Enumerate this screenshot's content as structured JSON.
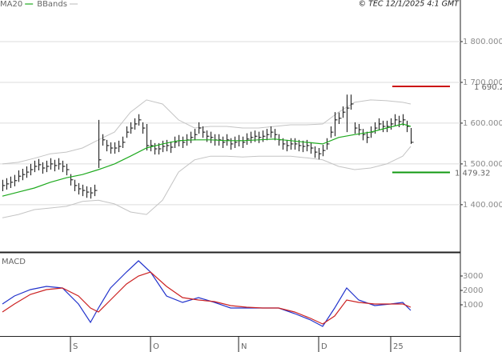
{
  "header": "© TEC 12/1/2025 4:1 GMT",
  "chart_data": [
    {
      "type": "ohlc",
      "x": [
        0,
        1,
        2,
        3,
        4,
        5,
        6,
        7,
        8,
        9,
        10,
        11,
        12,
        13,
        14,
        15,
        16,
        17,
        18,
        19,
        20,
        21,
        22,
        23,
        24,
        25,
        26,
        27,
        28,
        29,
        30,
        31,
        32,
        33,
        34,
        35,
        36,
        37,
        38,
        39,
        40,
        41,
        42,
        43,
        44,
        45,
        46,
        47,
        48,
        49,
        50,
        51,
        52,
        53,
        54,
        55,
        56,
        57,
        58,
        59,
        60,
        61,
        62,
        63,
        64,
        65,
        66,
        67,
        68,
        69,
        70,
        71,
        72,
        73,
        74,
        75,
        76,
        77,
        78,
        79,
        80,
        81,
        82,
        83,
        84,
        85,
        86,
        87,
        88,
        89,
        90,
        91,
        92,
        93,
        94,
        95,
        96,
        97,
        98,
        99,
        100,
        101,
        102
      ],
      "high": [
        1461,
        1465,
        1469,
        1473,
        1484,
        1488,
        1494,
        1500,
        1508,
        1512,
        1504,
        1508,
        1514,
        1510,
        1514,
        1508,
        1500,
        1475,
        1461,
        1453,
        1449,
        1445,
        1443,
        1449,
        1608,
        1573,
        1559,
        1553,
        1553,
        1557,
        1567,
        1592,
        1602,
        1612,
        1622,
        1602,
        1598,
        1559,
        1551,
        1551,
        1557,
        1559,
        1555,
        1567,
        1571,
        1567,
        1573,
        1579,
        1586,
        1602,
        1592,
        1582,
        1579,
        1573,
        1573,
        1567,
        1573,
        1563,
        1567,
        1571,
        1567,
        1575,
        1579,
        1582,
        1579,
        1582,
        1586,
        1592,
        1586,
        1573,
        1563,
        1559,
        1563,
        1563,
        1559,
        1557,
        1559,
        1553,
        1543,
        1539,
        1547,
        1563,
        1592,
        1627,
        1626,
        1641,
        1670,
        1670,
        1602,
        1598,
        1586,
        1579,
        1592,
        1602,
        1612,
        1606,
        1606,
        1612,
        1622,
        1618,
        1622,
        1606,
        1588
      ],
      "low": [
        1433,
        1437,
        1441,
        1445,
        1456,
        1460,
        1466,
        1472,
        1480,
        1484,
        1476,
        1480,
        1486,
        1482,
        1486,
        1480,
        1472,
        1447,
        1433,
        1425,
        1421,
        1417,
        1415,
        1421,
        1490,
        1545,
        1531,
        1525,
        1525,
        1529,
        1539,
        1564,
        1574,
        1584,
        1594,
        1574,
        1533,
        1531,
        1523,
        1523,
        1529,
        1531,
        1527,
        1539,
        1543,
        1539,
        1545,
        1551,
        1558,
        1574,
        1564,
        1554,
        1551,
        1545,
        1545,
        1539,
        1545,
        1535,
        1539,
        1543,
        1539,
        1547,
        1551,
        1554,
        1551,
        1554,
        1558,
        1564,
        1558,
        1545,
        1535,
        1531,
        1535,
        1535,
        1531,
        1529,
        1531,
        1525,
        1515,
        1511,
        1519,
        1535,
        1564,
        1568,
        1598,
        1613,
        1578,
        1633,
        1574,
        1570,
        1558,
        1551,
        1564,
        1574,
        1584,
        1578,
        1578,
        1584,
        1594,
        1590,
        1594,
        1578,
        1549
      ],
      "close": [
        1447,
        1451,
        1455,
        1459,
        1470,
        1474,
        1480,
        1486,
        1494,
        1498,
        1490,
        1494,
        1500,
        1496,
        1500,
        1494,
        1486,
        1461,
        1447,
        1439,
        1435,
        1431,
        1429,
        1435,
        1510,
        1559,
        1545,
        1539,
        1539,
        1543,
        1553,
        1578,
        1588,
        1598,
        1608,
        1588,
        1545,
        1545,
        1537,
        1537,
        1543,
        1545,
        1541,
        1553,
        1557,
        1553,
        1559,
        1565,
        1572,
        1588,
        1578,
        1568,
        1565,
        1559,
        1559,
        1553,
        1559,
        1549,
        1553,
        1557,
        1553,
        1561,
        1565,
        1568,
        1565,
        1568,
        1572,
        1578,
        1572,
        1559,
        1549,
        1545,
        1549,
        1549,
        1545,
        1543,
        1545,
        1539,
        1529,
        1525,
        1533,
        1549,
        1578,
        1608,
        1612,
        1627,
        1637,
        1647,
        1588,
        1584,
        1572,
        1565,
        1578,
        1588,
        1598,
        1592,
        1592,
        1598,
        1608,
        1604,
        1608,
        1592,
        1553
      ],
      "bar_color": "#111111",
      "xlim": [
        -0.6,
        114.4
      ],
      "ylim": [
        1284,
        1902
      ],
      "yticks": [
        {
          "value": 1400,
          "label": "1 400.000"
        },
        {
          "value": 1500,
          "label": "1 500.000"
        },
        {
          "value": 1600,
          "label": "1 600.000"
        },
        {
          "value": 1700,
          "label": "1 700.000"
        },
        {
          "value": 1800,
          "label": "1 800.000"
        }
      ],
      "grid": true,
      "series": [
        {
          "name": "MA20",
          "color": "#1faa1f",
          "x": [
            0,
            4,
            8,
            12,
            16,
            20,
            24,
            28,
            32,
            36,
            40,
            44,
            48,
            52,
            56,
            60,
            64,
            68,
            72,
            76,
            80,
            84,
            88,
            92,
            96,
            100,
            102
          ],
          "values": [
            1421,
            1431,
            1441,
            1455,
            1466,
            1474,
            1486,
            1500,
            1519,
            1539,
            1549,
            1557,
            1559,
            1559,
            1557,
            1557,
            1559,
            1561,
            1557,
            1553,
            1549,
            1565,
            1572,
            1578,
            1588,
            1598,
            1592
          ]
        },
        {
          "name": "BBands",
          "color": "#c4c4c4",
          "x": [
            0,
            4,
            8,
            12,
            16,
            20,
            24,
            28,
            32,
            36,
            40,
            44,
            48,
            52,
            56,
            60,
            64,
            68,
            72,
            76,
            80,
            84,
            88,
            92,
            96,
            100,
            102
          ],
          "upper": [
            1500,
            1504,
            1514,
            1525,
            1529,
            1539,
            1559,
            1578,
            1627,
            1657,
            1647,
            1608,
            1588,
            1592,
            1592,
            1588,
            1588,
            1592,
            1596,
            1596,
            1598,
            1627,
            1651,
            1657,
            1655,
            1651,
            1647
          ],
          "lower": [
            1368,
            1376,
            1388,
            1392,
            1396,
            1408,
            1411,
            1402,
            1382,
            1376,
            1411,
            1480,
            1510,
            1519,
            1519,
            1517,
            1519,
            1519,
            1519,
            1515,
            1510,
            1494,
            1486,
            1490,
            1500,
            1519,
            1543
          ]
        }
      ],
      "levels": [
        {
          "value": 1690.2,
          "label": "1 690.2",
          "color": "#cc1111"
        },
        {
          "value": 1479.32,
          "label": "1 479.32",
          "color": "#119911"
        }
      ]
    },
    {
      "type": "line",
      "title": "MACD",
      "x": [
        0,
        3,
        7,
        11,
        15,
        19,
        22,
        24,
        27,
        31,
        34,
        37,
        41,
        45,
        49,
        53,
        57,
        61,
        65,
        69,
        73,
        77,
        80,
        83,
        86,
        89,
        93,
        97,
        100,
        102
      ],
      "xlim": [
        -0.6,
        114.4
      ],
      "ylim": [
        -1167,
        4611
      ],
      "yticks": [
        1000,
        2000,
        3000
      ],
      "xticks": [
        {
          "value": 17,
          "label": "S"
        },
        {
          "value": 37,
          "label": "O"
        },
        {
          "value": 59,
          "label": "N"
        },
        {
          "value": 79,
          "label": "D"
        },
        {
          "value": 97,
          "label": "25"
        }
      ],
      "grid": false,
      "series": [
        {
          "color": "#2233cc",
          "values": [
            1055,
            1611,
            2055,
            2278,
            2167,
            1055,
            -222,
            778,
            2167,
            3278,
            4055,
            3278,
            1611,
            1167,
            1500,
            1167,
            778,
            778,
            778,
            778,
            389,
            -56,
            -500,
            778,
            2167,
            1333,
            944,
            1055,
            1167,
            611
          ]
        },
        {
          "color": "#cc2222",
          "values": [
            500,
            1055,
            1722,
            2055,
            2167,
            1611,
            778,
            500,
            1333,
            2444,
            3000,
            3278,
            2278,
            1500,
            1333,
            1222,
            944,
            833,
            778,
            778,
            500,
            55,
            -333,
            222,
            1333,
            1167,
            1055,
            1055,
            1055,
            833
          ]
        }
      ]
    }
  ]
}
